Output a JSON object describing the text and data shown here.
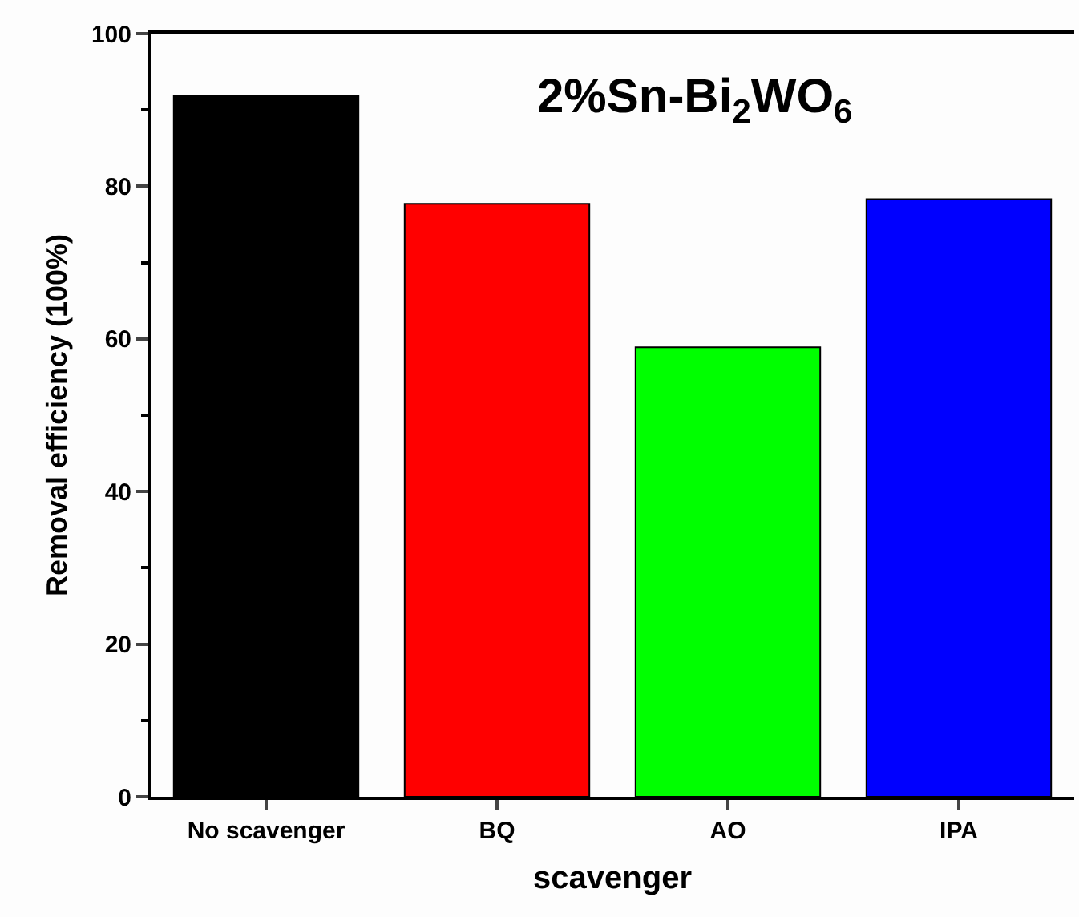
{
  "chart_data": {
    "type": "bar",
    "title": "2%Sn-Bi$_{2}$WO$_{6}$",
    "xlabel": "scavenger",
    "ylabel": "Removal efficiency (100%)",
    "categories": [
      "No scavenger",
      "BQ",
      "AO",
      "IPA"
    ],
    "values": [
      91.9,
      77.7,
      58.9,
      78.3
    ],
    "colors": [
      "#000000",
      "#ff0000",
      "#00ff00",
      "#0000ff"
    ],
    "ylim": [
      0,
      100
    ],
    "yticks": [
      0,
      {
        "value": 10,
        "label": null
      },
      20,
      {
        "value": 30,
        "label": null
      },
      40,
      {
        "value": 50,
        "label": null
      },
      60,
      {
        "value": 70,
        "label": null
      },
      80,
      {
        "value": 90,
        "label": null
      },
      100
    ],
    "grid": false
  }
}
